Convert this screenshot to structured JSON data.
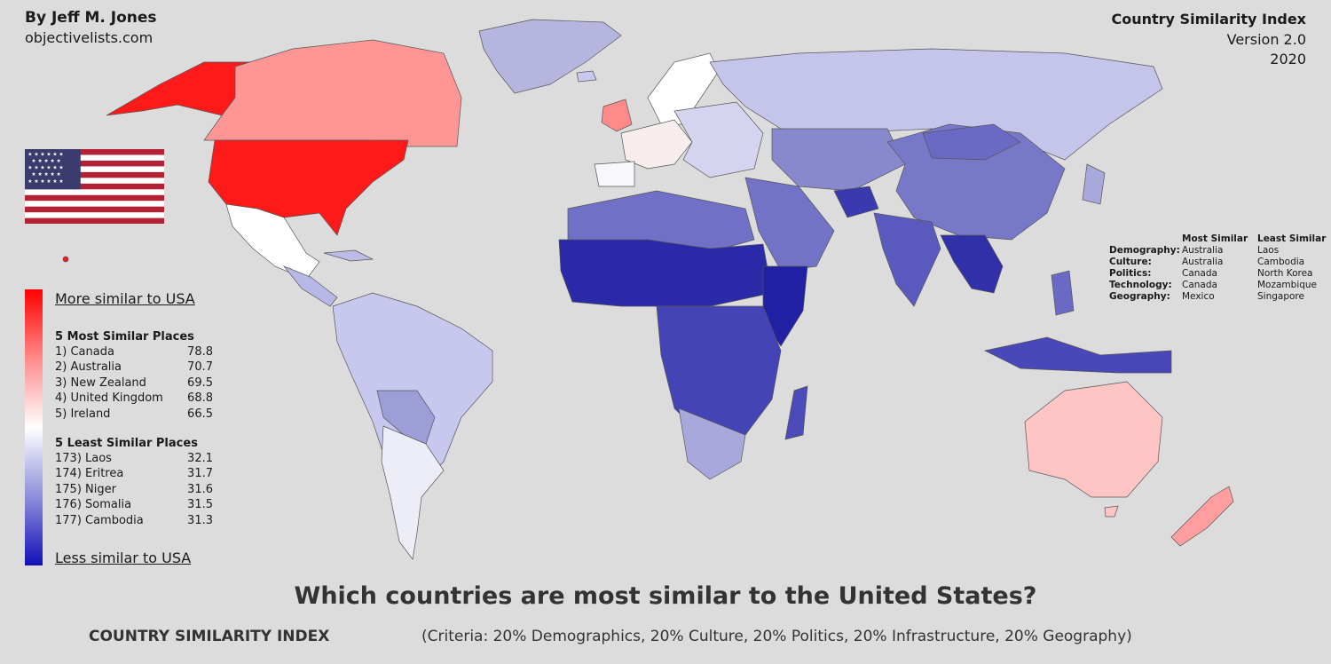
{
  "author": "By Jeff M. Jones",
  "site": "objectivelists.com",
  "index_title": "Country Similarity Index",
  "version": "Version 2.0",
  "year": "2020",
  "legend": {
    "more_label": "More similar to USA",
    "less_label": "Less similar to USA",
    "colors": {
      "high": "#ff0000",
      "mid": "#ffffff",
      "low": "#1010b8"
    }
  },
  "most_similar": {
    "heading": "5 Most Similar Places",
    "items": [
      {
        "name": "1) Canada",
        "score": "78.8"
      },
      {
        "name": "2) Australia",
        "score": "70.7"
      },
      {
        "name": "3) New Zealand",
        "score": "69.5"
      },
      {
        "name": "4) United Kingdom",
        "score": "68.8"
      },
      {
        "name": "5) Ireland",
        "score": "66.5"
      }
    ]
  },
  "least_similar": {
    "heading": "5 Least Similar Places",
    "items": [
      {
        "name": "173) Laos",
        "score": "32.1"
      },
      {
        "name": "174) Eritrea",
        "score": "31.7"
      },
      {
        "name": "175) Niger",
        "score": "31.6"
      },
      {
        "name": "176) Somalia",
        "score": "31.5"
      },
      {
        "name": "177) Cambodia",
        "score": "31.3"
      }
    ]
  },
  "category_table": {
    "headers": [
      "",
      "Most Similar",
      "Least Similar"
    ],
    "rows": [
      [
        "Demography:",
        "Australia",
        "Laos"
      ],
      [
        "Culture:",
        "Australia",
        "Cambodia"
      ],
      [
        "Politics:",
        "Canada",
        "North Korea"
      ],
      [
        "Technology:",
        "Canada",
        "Mozambique"
      ],
      [
        "Geography:",
        "Mexico",
        "Singapore"
      ]
    ]
  },
  "headline": "Which countries are most similar to the United States?",
  "footer_label": "COUNTRY SIMILARITY INDEX",
  "footer_criteria": "(Criteria: 20% Demographics, 20% Culture, 20% Politics, 20% Infrastructure, 20% Geography)"
}
